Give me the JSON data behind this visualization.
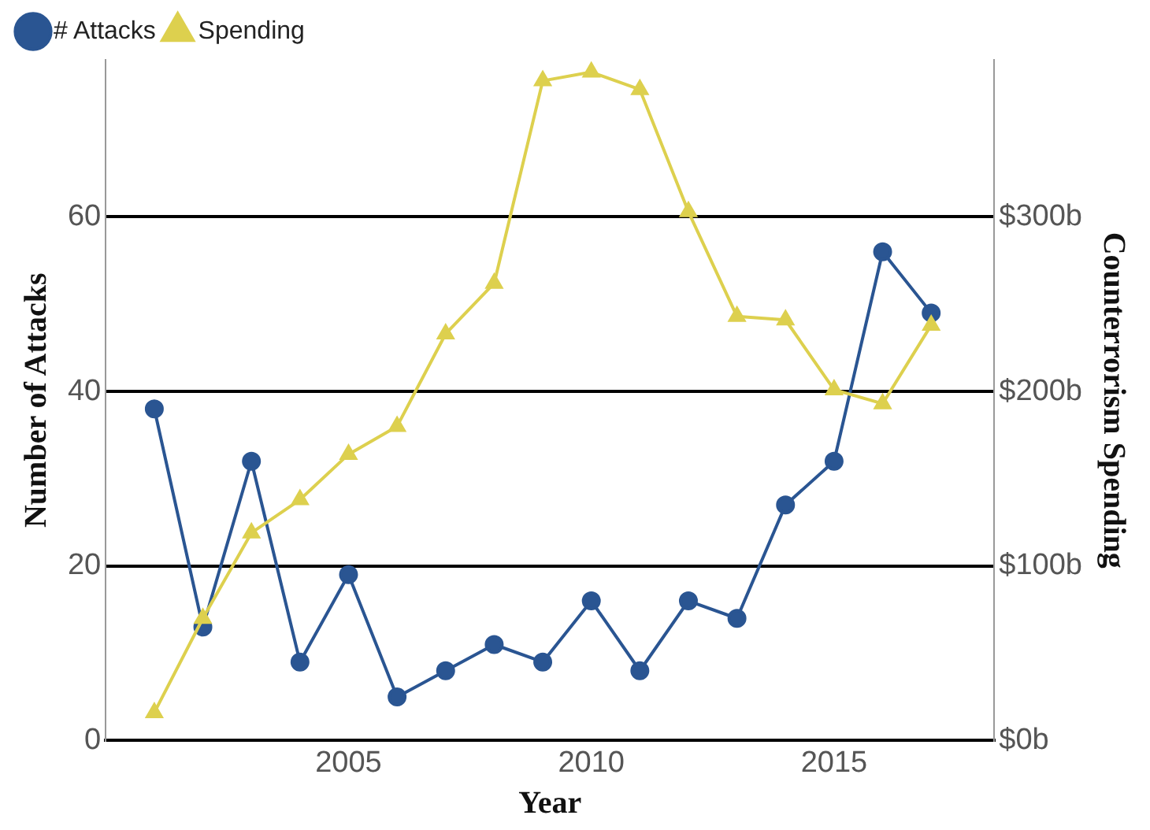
{
  "chart_data": {
    "type": "line",
    "xlabel": "Year",
    "ylabel": "Number of Attacks",
    "y2label": "Counterrorism Spending",
    "x": [
      2001,
      2002,
      2003,
      2004,
      2005,
      2006,
      2007,
      2008,
      2009,
      2010,
      2011,
      2012,
      2013,
      2014,
      2015,
      2016,
      2017
    ],
    "series": [
      {
        "name": "# Attacks",
        "color": "#2a5592",
        "marker": "circle",
        "values": [
          38,
          13,
          32,
          9,
          19,
          5,
          8,
          11,
          9,
          16,
          8,
          16,
          14,
          27,
          32,
          56,
          49
        ]
      },
      {
        "name": "Spending",
        "color": "#ddd04e",
        "marker": "triangle",
        "axis": "y2",
        "values": [
          16,
          70,
          119,
          138,
          164,
          180,
          233,
          262,
          378,
          383,
          373,
          303,
          243,
          241,
          201,
          193,
          238
        ]
      }
    ],
    "xlim": [
      2000,
      2018.3
    ],
    "xticks": [
      2005,
      2010,
      2015
    ],
    "ylim": [
      0,
      78
    ],
    "yticks": [
      0,
      20,
      40,
      60
    ],
    "y2lim": [
      0,
      390
    ],
    "y2ticks": [
      {
        "value": 0,
        "label": "$0b"
      },
      {
        "value": 100,
        "label": "$100b"
      },
      {
        "value": 200,
        "label": "$200b"
      },
      {
        "value": 300,
        "label": "$300b"
      }
    ],
    "grid": "y",
    "legend": "top left"
  }
}
